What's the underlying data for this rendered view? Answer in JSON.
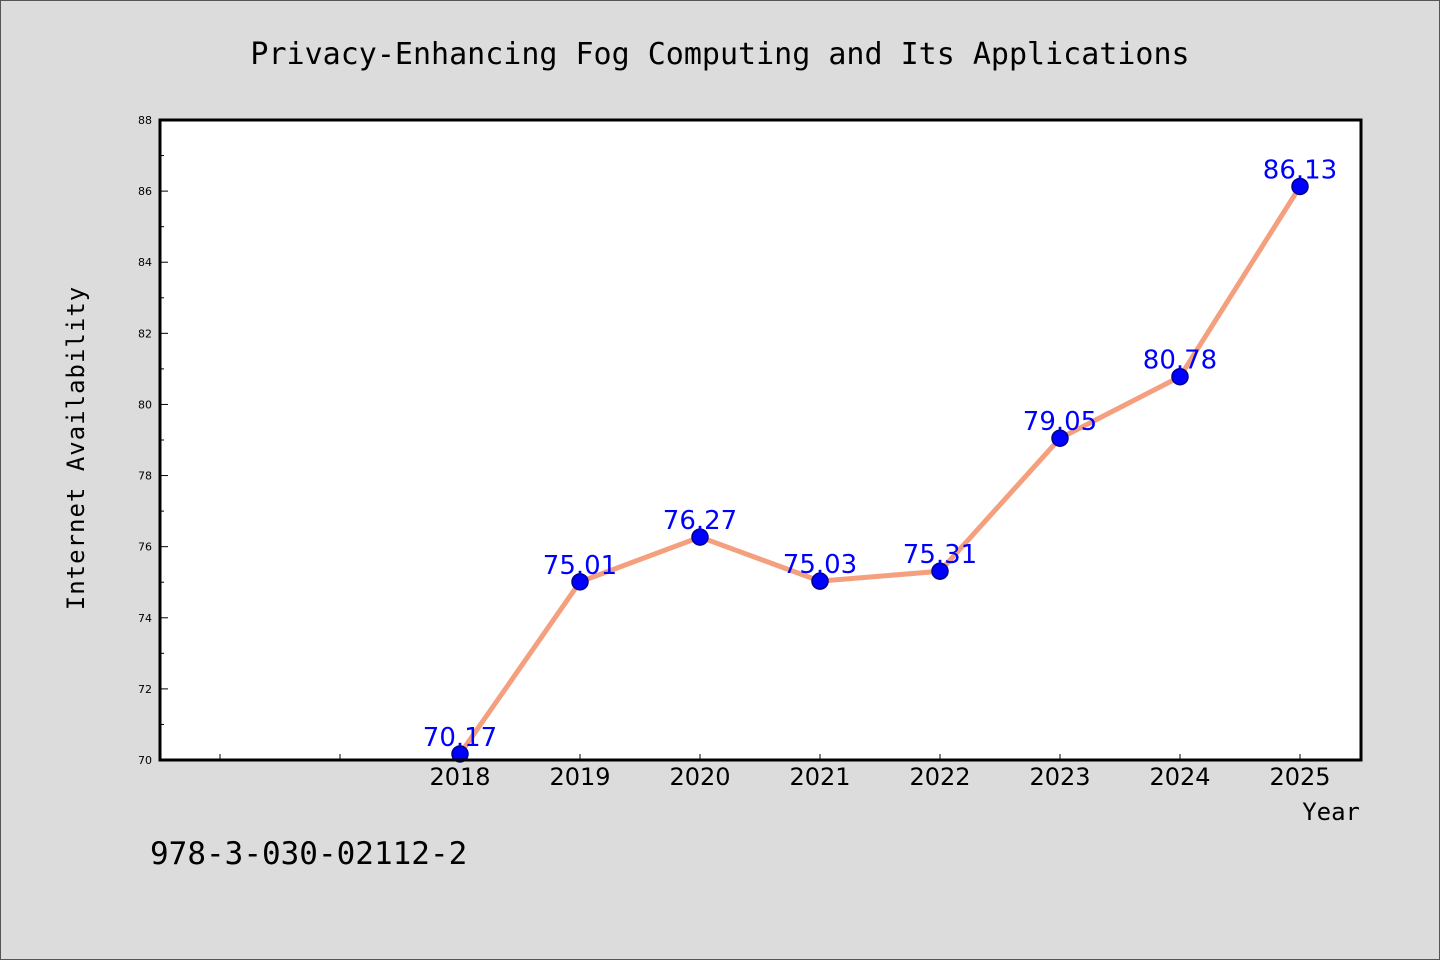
{
  "chart_data": {
    "type": "line",
    "title": "Privacy-Enhancing Fog Computing and Its Applications",
    "xlabel": "Year",
    "ylabel": "Internet Availability",
    "x": [
      "2018",
      "2019",
      "2020",
      "2021",
      "2022",
      "2023",
      "2024",
      "2025"
    ],
    "y": [
      70.17,
      75.01,
      76.27,
      75.03,
      75.31,
      79.05,
      80.78,
      86.13
    ],
    "data_labels": [
      "70.17",
      "75.01",
      "76.27",
      "75.03",
      "75.31",
      "79.05",
      "80.78",
      "86.13"
    ],
    "ylim": [
      70,
      88
    ],
    "yticks": [
      "70",
      "72",
      "74",
      "76",
      "78",
      "80",
      "82",
      "84",
      "86",
      "88"
    ],
    "x_slots": [
      "",
      "",
      "2018",
      "2019",
      "2020",
      "2021",
      "2022",
      "2023",
      "2024",
      "2025"
    ],
    "grid": false,
    "legend": "none",
    "colors": {
      "line": "#f4a07e",
      "marker": "#0000ff",
      "marker_edge": "#00008b",
      "data_label": "#0000ff",
      "background": "#dcdcdc",
      "plot_background": "#ffffff"
    }
  },
  "footer": {
    "isbn": "978-3-030-02112-2"
  }
}
